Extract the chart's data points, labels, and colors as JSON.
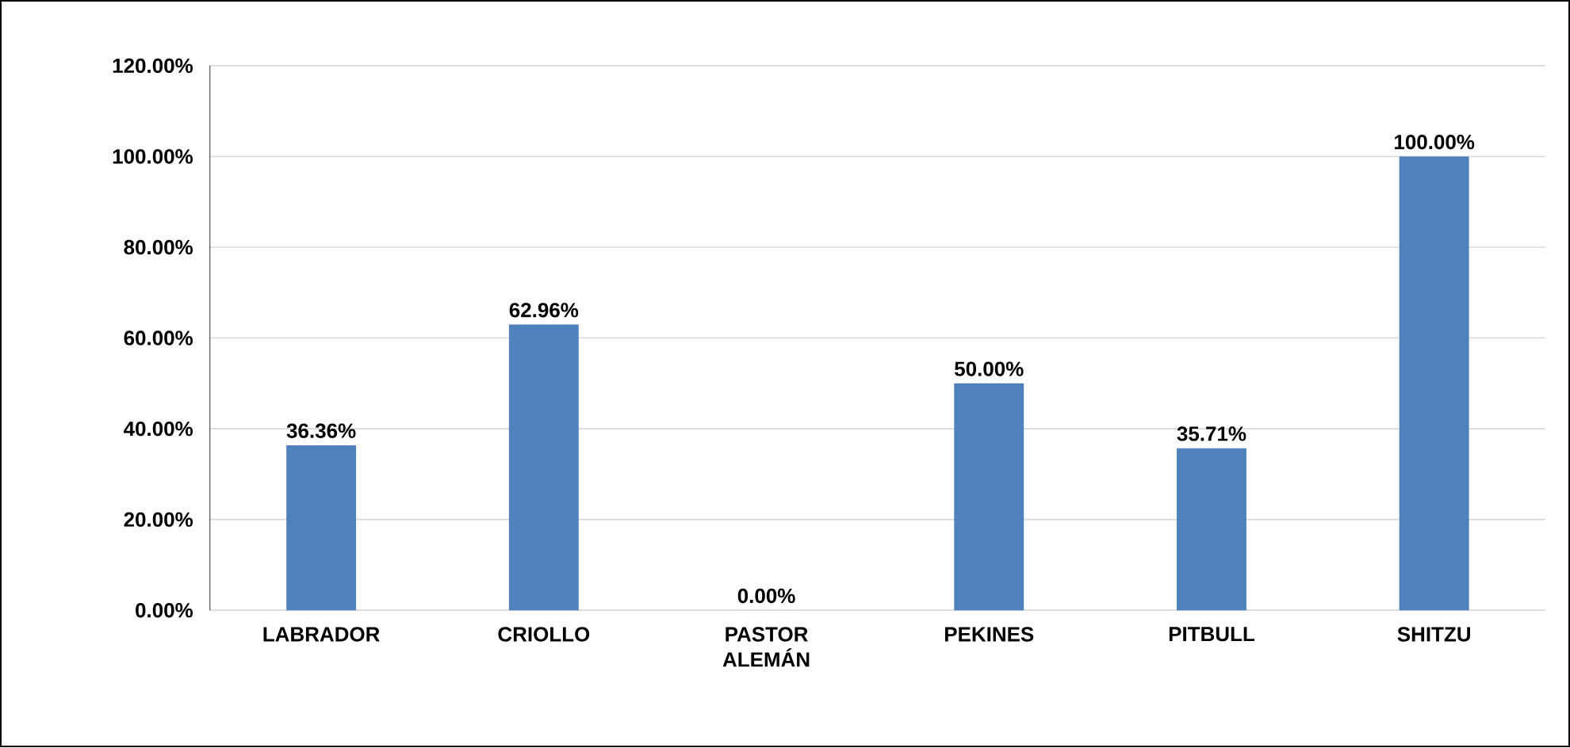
{
  "chart_data": {
    "type": "bar",
    "categories": [
      "LABRADOR",
      "CRIOLLO",
      "PASTOR ALEMÁN",
      "PEKINES",
      "PITBULL",
      "SHITZU"
    ],
    "values": [
      36.36,
      62.96,
      0,
      50,
      35.71,
      100
    ],
    "value_labels": [
      "36.36%",
      "62.96%",
      "0.00%",
      "50.00%",
      "35.71%",
      "100.00%"
    ],
    "color": "#4f81bd",
    "ylim": [
      0,
      120
    ],
    "yticks": [
      {
        "value": 0,
        "label": "0.00%"
      },
      {
        "value": 20,
        "label": "20.00%"
      },
      {
        "value": 40,
        "label": "40.00%"
      },
      {
        "value": 60,
        "label": "60.00%"
      },
      {
        "value": 80,
        "label": "80.00%"
      },
      {
        "value": 100,
        "label": "100.00%"
      },
      {
        "value": 120,
        "label": "120.00%"
      }
    ],
    "grid": "y"
  }
}
